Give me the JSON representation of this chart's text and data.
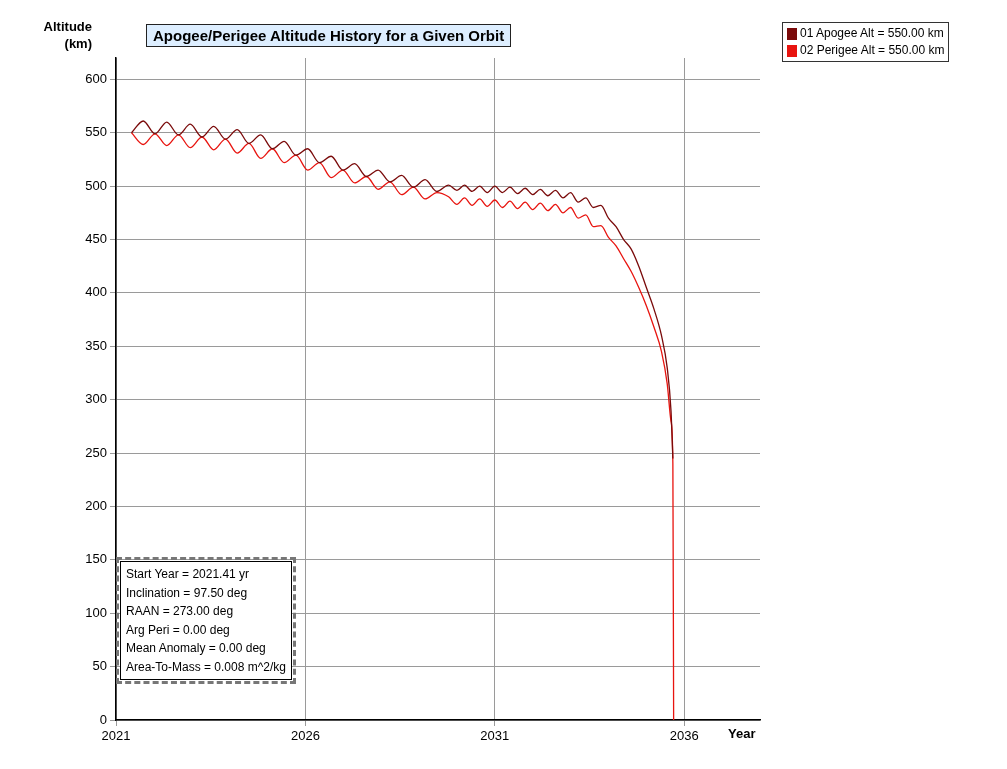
{
  "chart_data": {
    "type": "line",
    "title": "Apogee/Perigee Altitude History for a Given Orbit",
    "xlabel": "Year",
    "ylabel": "Altitude (km)",
    "xlim": [
      2021,
      2038
    ],
    "xticks": [
      2021,
      2026,
      2031,
      2036
    ],
    "ylim": [
      0,
      620
    ],
    "yticks": [
      0,
      50,
      100,
      150,
      200,
      250,
      300,
      350,
      400,
      450,
      500,
      550,
      600
    ],
    "grid": true,
    "legend": "top right",
    "marker": "none",
    "line_style": "solid",
    "annotations": [
      "Start Year = 2021.41 yr",
      "Inclination = 97.50 deg",
      "RAAN = 273.00 deg",
      "Arg Peri = 0.00 deg",
      "Mean Anomaly = 0.00 deg",
      "Area-To-Mass = 0.008 m^2/kg"
    ],
    "series": [
      {
        "name": "01 Apogee Alt = 550.00 km",
        "color": "#7a0a0a",
        "x": [
          2021.41,
          2021.72,
          2022.03,
          2022.34,
          2022.65,
          2022.96,
          2023.27,
          2023.58,
          2023.89,
          2024.2,
          2024.51,
          2024.82,
          2025.13,
          2025.44,
          2025.75,
          2026.06,
          2026.37,
          2026.68,
          2026.99,
          2027.3,
          2027.61,
          2027.92,
          2028.23,
          2028.54,
          2028.85,
          2029.16,
          2029.47,
          2029.78,
          2030.0,
          2030.2,
          2030.4,
          2030.6,
          2030.8,
          2031.0,
          2031.2,
          2031.4,
          2031.6,
          2031.8,
          2032.0,
          2032.2,
          2032.4,
          2032.6,
          2032.8,
          2033.0,
          2033.2,
          2033.4,
          2033.6,
          2033.8,
          2034.0,
          2034.2,
          2034.4,
          2034.6,
          2034.8,
          2035.0,
          2035.2,
          2035.4,
          2035.55,
          2035.65,
          2035.7
        ],
        "values": [
          550,
          561,
          549,
          560,
          548,
          558,
          546,
          556,
          544,
          553,
          540,
          548,
          535,
          542,
          529,
          535,
          522,
          528,
          515,
          521,
          509,
          515,
          504,
          510,
          499,
          506,
          495,
          501,
          496,
          501,
          495,
          500,
          494,
          500,
          494,
          499,
          493,
          498,
          492,
          497,
          491,
          496,
          489,
          494,
          485,
          489,
          480,
          482,
          470,
          462,
          450,
          441,
          425,
          405,
          385,
          360,
          330,
          290,
          245
        ]
      },
      {
        "name": "02 Perigee Alt = 550.00 km",
        "color": "#e8140f",
        "x": [
          2021.41,
          2021.72,
          2022.03,
          2022.34,
          2022.65,
          2022.96,
          2023.27,
          2023.58,
          2023.89,
          2024.2,
          2024.51,
          2024.82,
          2025.13,
          2025.44,
          2025.75,
          2026.06,
          2026.37,
          2026.68,
          2026.99,
          2027.3,
          2027.61,
          2027.92,
          2028.23,
          2028.54,
          2028.85,
          2029.16,
          2029.47,
          2029.78,
          2030.0,
          2030.2,
          2030.4,
          2030.6,
          2030.8,
          2031.0,
          2031.2,
          2031.4,
          2031.6,
          2031.8,
          2032.0,
          2032.2,
          2032.4,
          2032.6,
          2032.8,
          2033.0,
          2033.2,
          2033.4,
          2033.6,
          2033.8,
          2034.0,
          2034.2,
          2034.4,
          2034.6,
          2034.8,
          2035.0,
          2035.2,
          2035.4,
          2035.55,
          2035.65,
          2035.7,
          2035.72
        ],
        "values": [
          550,
          539,
          549,
          538,
          548,
          536,
          546,
          534,
          544,
          531,
          540,
          526,
          535,
          522,
          529,
          515,
          522,
          508,
          515,
          503,
          509,
          497,
          504,
          492,
          499,
          488,
          494,
          490,
          483,
          489,
          482,
          488,
          481,
          487,
          480,
          486,
          479,
          485,
          478,
          484,
          477,
          483,
          475,
          480,
          470,
          473,
          462,
          463,
          452,
          444,
          432,
          420,
          405,
          388,
          368,
          345,
          315,
          280,
          240,
          0
        ]
      }
    ]
  }
}
